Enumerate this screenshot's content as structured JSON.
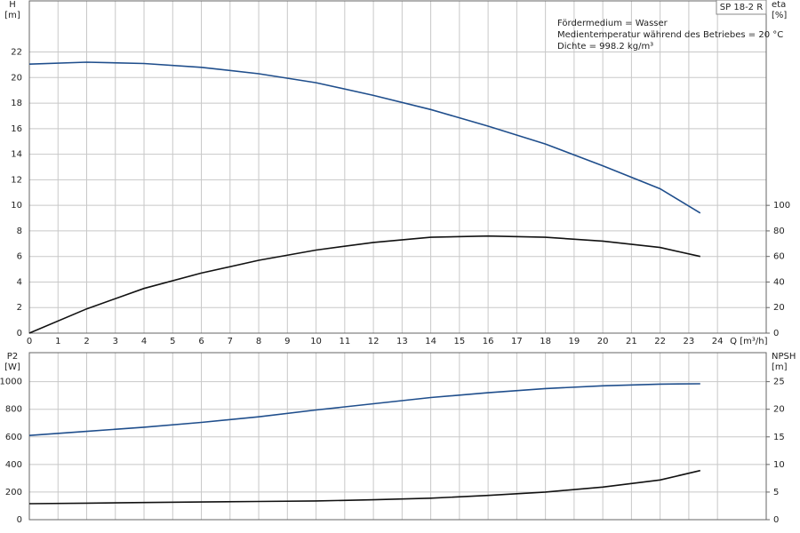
{
  "chart_data": [
    {
      "type": "line",
      "title": "SP 18-2 R",
      "annotations": [
        "Fördermedium = Wasser",
        "Medientemperatur während des Betriebes = 20 °C",
        "Dichte = 998.2 kg/m³"
      ],
      "xlabel": "Q [m³/h]",
      "ylabel": [
        "H",
        "[m]"
      ],
      "y2label": [
        "eta",
        "[%]"
      ],
      "x": [
        0,
        2,
        4,
        6,
        8,
        10,
        12,
        14,
        16,
        18,
        20,
        22,
        23.4
      ],
      "xlim": [
        0,
        25.7
      ],
      "xticks": [
        0,
        1,
        2,
        3,
        4,
        5,
        6,
        7,
        8,
        9,
        10,
        11,
        12,
        13,
        14,
        15,
        16,
        17,
        18,
        19,
        20,
        21,
        22,
        23,
        24
      ],
      "ylim": [
        0,
        26
      ],
      "yticks": [
        0,
        2,
        4,
        6,
        8,
        10,
        12,
        14,
        16,
        18,
        20,
        22
      ],
      "y2lim": [
        0,
        260
      ],
      "y2ticks": [
        0,
        20,
        40,
        60,
        80,
        100
      ],
      "grid": true,
      "series": [
        {
          "name": "H",
          "color": "#1f4e8c",
          "values": [
            21.05,
            21.2,
            21.1,
            20.8,
            20.3,
            19.6,
            18.6,
            17.5,
            16.2,
            14.8,
            13.1,
            11.3,
            9.4
          ]
        },
        {
          "name": "eta",
          "color": "#111111",
          "axis": "y2",
          "values": [
            0,
            19,
            35,
            47,
            57,
            65,
            71,
            75,
            76,
            75,
            72,
            67,
            60
          ]
        }
      ]
    },
    {
      "type": "line",
      "ylabel": [
        "P2",
        "[W]"
      ],
      "y2label": [
        "NPSH",
        "[m]"
      ],
      "x": [
        0,
        2,
        4,
        6,
        8,
        10,
        12,
        14,
        16,
        18,
        20,
        22,
        23.4
      ],
      "xlim": [
        0,
        25.7
      ],
      "xticks": [
        0,
        1,
        2,
        3,
        4,
        5,
        6,
        7,
        8,
        9,
        10,
        11,
        12,
        13,
        14,
        15,
        16,
        17,
        18,
        19,
        20,
        21,
        22,
        23,
        24
      ],
      "ylim": [
        0,
        1210
      ],
      "yticks": [
        0,
        200,
        400,
        600,
        800,
        1000
      ],
      "y2lim": [
        0,
        30.25
      ],
      "y2ticks": [
        0,
        5,
        10,
        15,
        20,
        25
      ],
      "grid": true,
      "series": [
        {
          "name": "P2",
          "color": "#1f4e8c",
          "values": [
            610,
            640,
            670,
            705,
            745,
            795,
            840,
            885,
            920,
            950,
            970,
            982,
            985
          ]
        },
        {
          "name": "NPSH",
          "color": "#111111",
          "axis": "y2",
          "values": [
            2.9,
            3.0,
            3.1,
            3.2,
            3.3,
            3.4,
            3.6,
            3.9,
            4.4,
            5.0,
            5.9,
            7.2,
            8.9
          ]
        }
      ]
    }
  ]
}
